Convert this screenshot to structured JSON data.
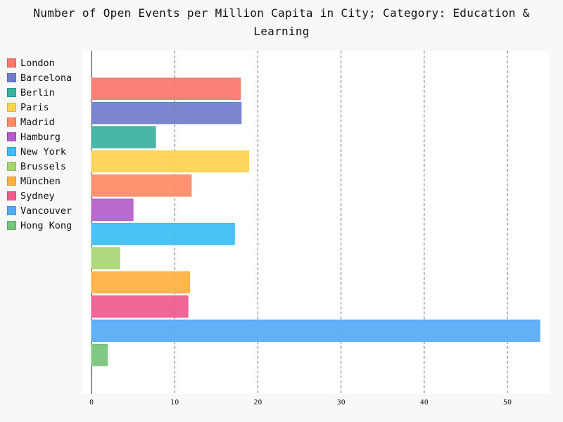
{
  "title": "Number of Open Events per Million Capita in City; Category: Education & Learning",
  "chart_data": {
    "type": "bar",
    "orientation": "horizontal",
    "title": "Number of Open Events per Million Capita in City; Category: Education & Learning",
    "xlabel": "",
    "ylabel": "",
    "xlim": [
      0,
      55
    ],
    "xticks": [
      0,
      10,
      20,
      30,
      40,
      50
    ],
    "grid": "vertical dashed",
    "legend_position": "left",
    "categories": [
      "London",
      "Barcelona",
      "Berlin",
      "Paris",
      "Madrid",
      "Hamburg",
      "New York",
      "Brussels",
      "München",
      "Sydney",
      "Vancouver",
      "Hong Kong"
    ],
    "values": [
      17.9,
      18.0,
      7.7,
      18.9,
      12.0,
      5.0,
      17.2,
      3.4,
      11.8,
      11.6,
      53.9,
      1.9
    ],
    "colors": [
      "#f8766d",
      "#6f7dcc",
      "#3ab0a0",
      "#ffd24d",
      "#ff8a65",
      "#b45cc8",
      "#3cbdf5",
      "#a8d574",
      "#ffb040",
      "#ef5a8c",
      "#55aaf5",
      "#74c47a"
    ]
  }
}
